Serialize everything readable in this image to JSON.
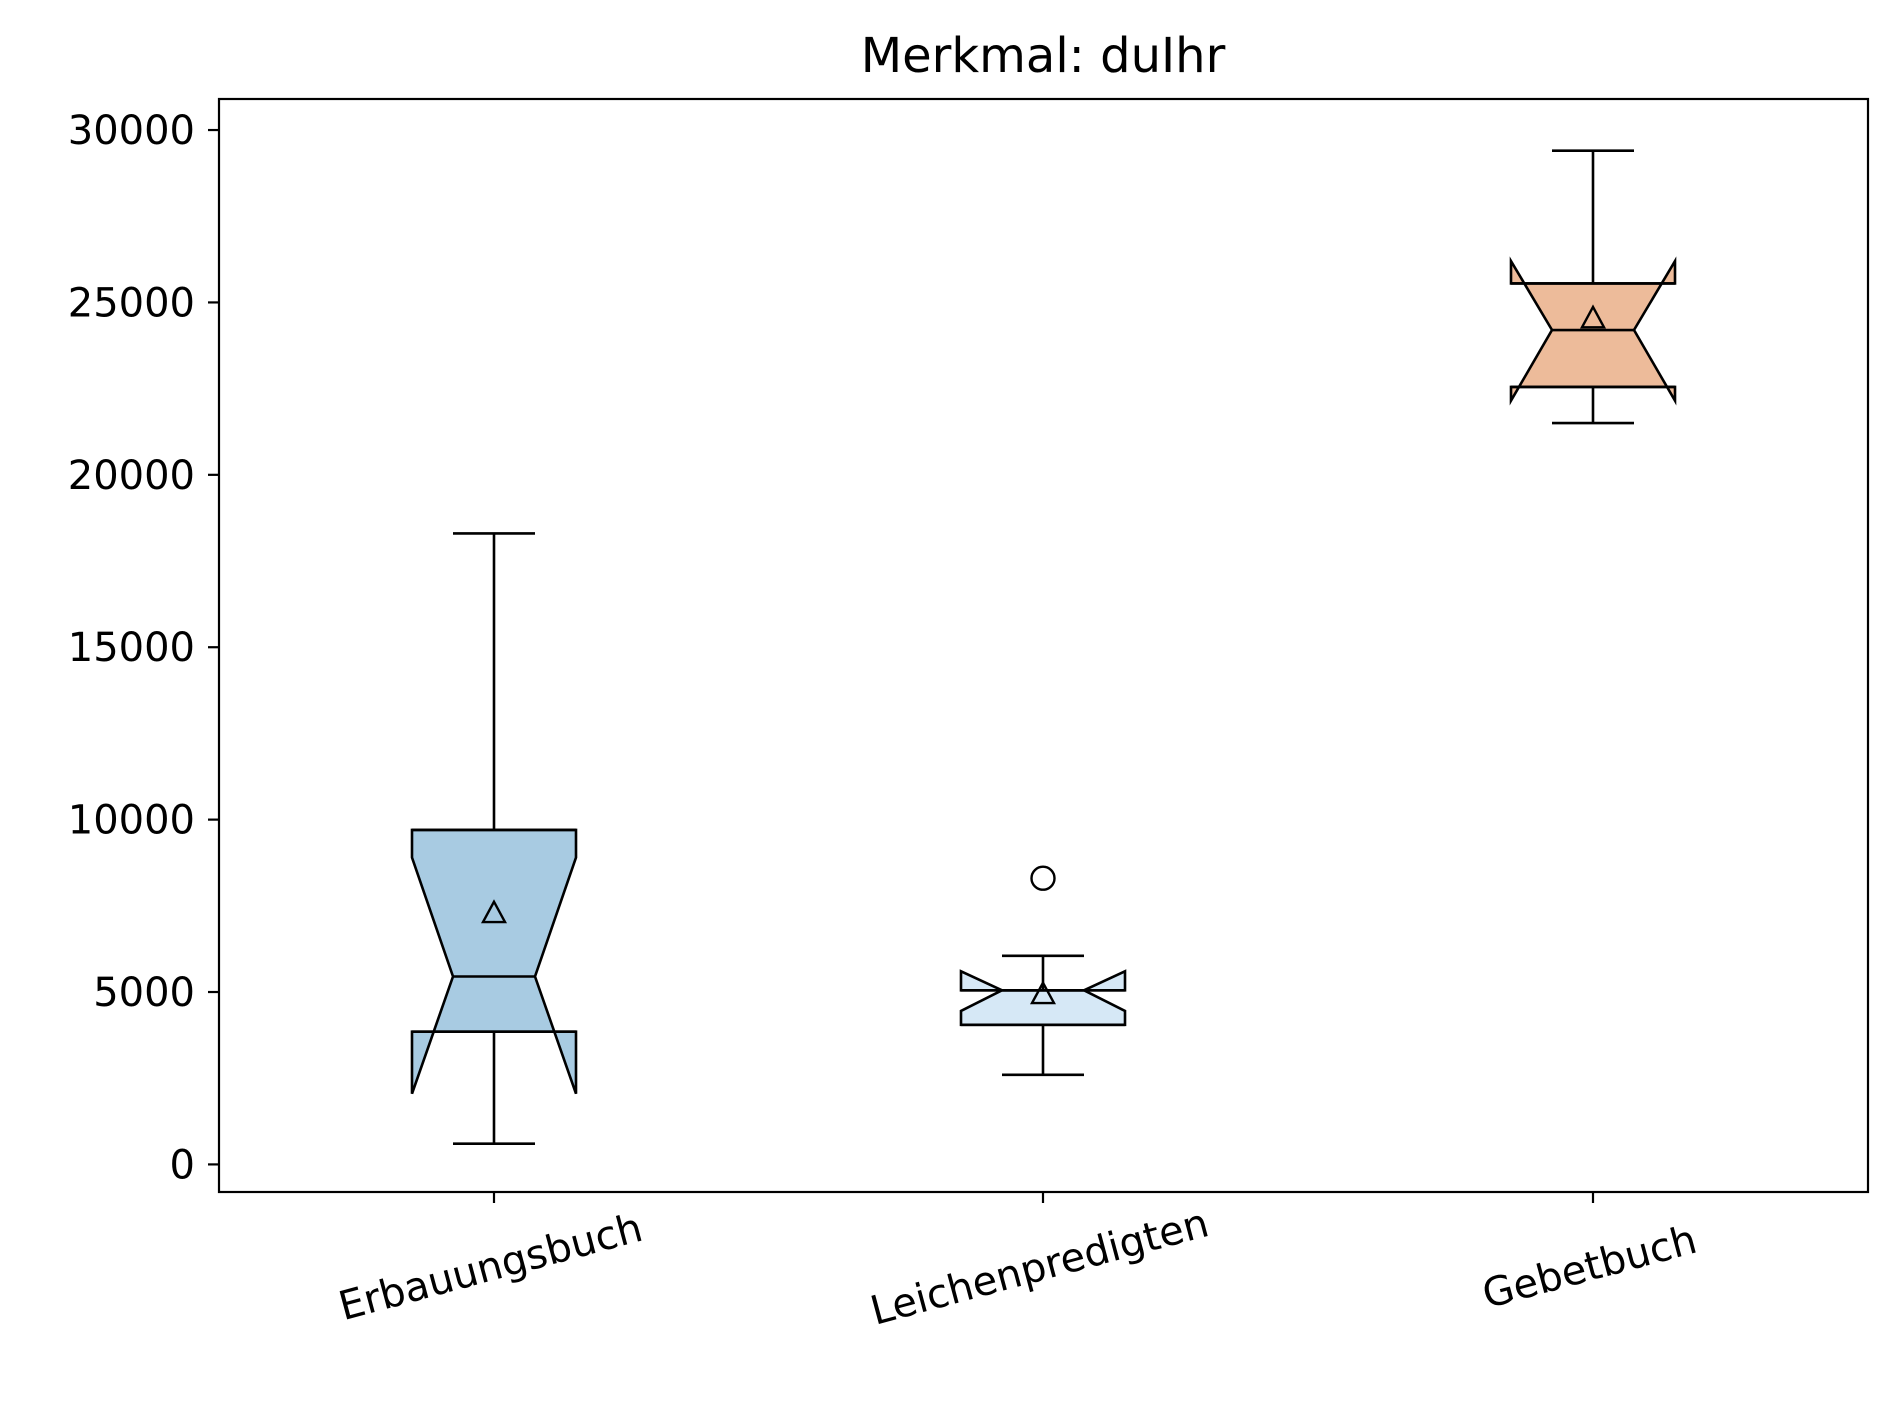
{
  "chart_data": {
    "type": "boxplot",
    "title": "Merkmal: duIhr",
    "xlabel": "",
    "ylabel": "",
    "ylim": [
      -800,
      30900
    ],
    "yticks": [
      0,
      5000,
      10000,
      15000,
      20000,
      25000,
      30000
    ],
    "categories": [
      "Erbauungsbuch",
      "Leichenpredigten",
      "Gebetbuch"
    ],
    "boxes": [
      {
        "name": "Erbauungsbuch",
        "whislo": 600,
        "q1": 3850,
        "med": 5450,
        "q3": 9700,
        "whishi": 18300,
        "mean": 7300,
        "notch_lo": 2050,
        "notch_hi": 8900,
        "fliers": [],
        "color": "#a8cbe2"
      },
      {
        "name": "Leichenpredigten",
        "whislo": 2600,
        "q1": 4050,
        "med": 5050,
        "q3": 5050,
        "whishi": 6050,
        "mean": 4950,
        "notch_lo": 4450,
        "notch_hi": 5600,
        "fliers": [
          8300
        ],
        "color": "#d6e8f6"
      },
      {
        "name": "Gebetbuch",
        "whislo": 21500,
        "q1": 22550,
        "med": 24200,
        "q3": 25550,
        "whishi": 29400,
        "mean": 24550,
        "notch_lo": 22150,
        "notch_hi": 26200,
        "fliers": [],
        "color": "#edbb9a"
      }
    ],
    "grid": false,
    "legend": "none"
  }
}
